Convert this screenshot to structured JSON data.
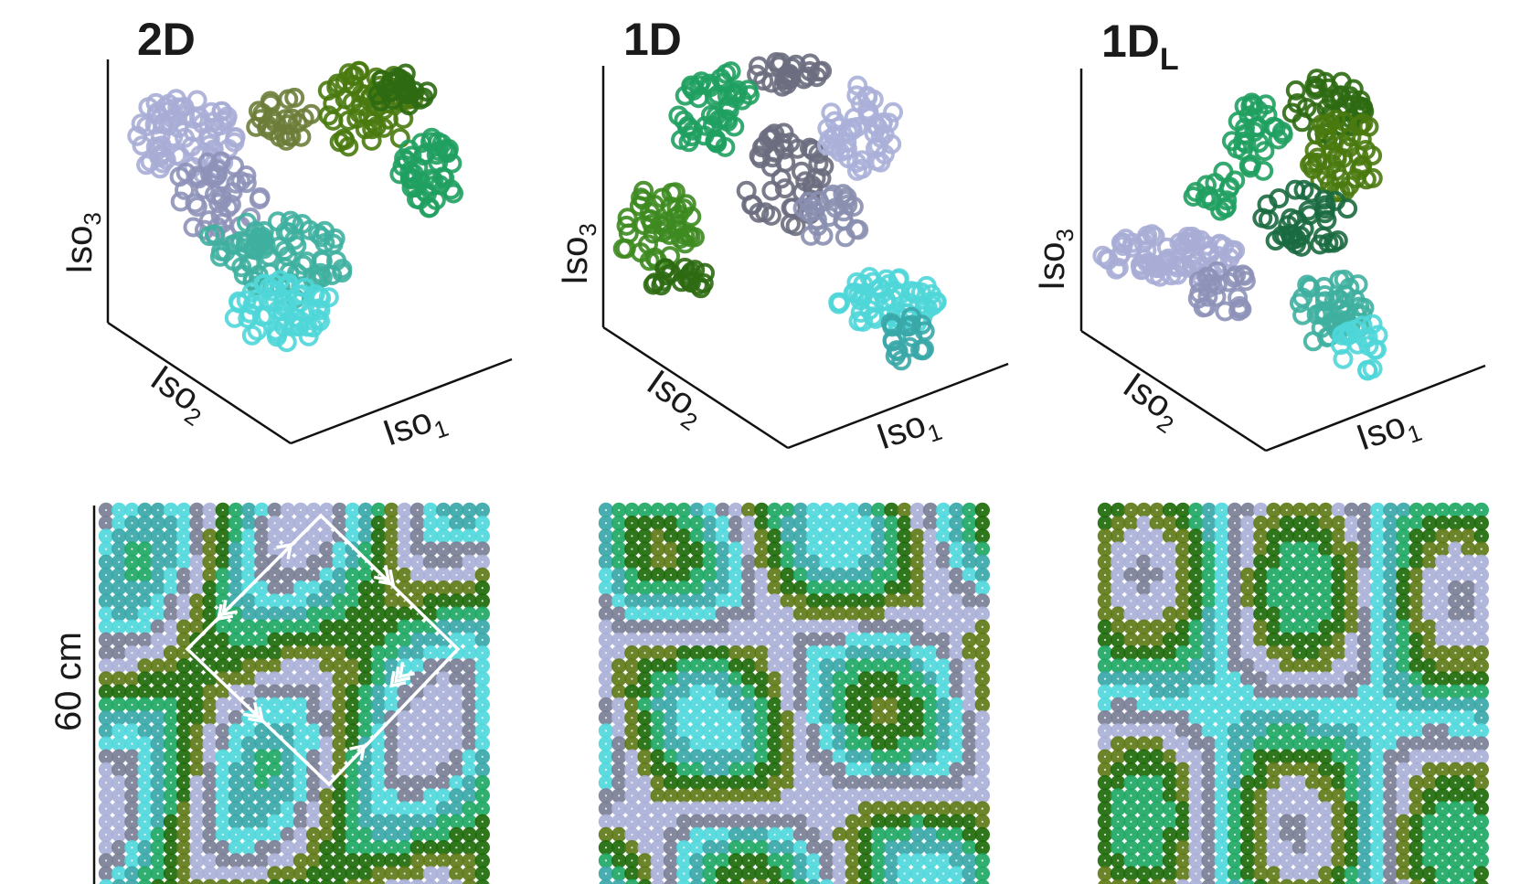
{
  "panels": [
    {
      "id": "2d",
      "title": "2D",
      "title_subscript": "",
      "axes": {
        "x": "Iso",
        "x_sub": "1",
        "y": "Iso",
        "y_sub": "2",
        "z": "Iso",
        "z_sub": "3"
      },
      "cloud_palette": [
        "#a9add6",
        "#8e92b8",
        "#6d7d3a",
        "#4a7a10",
        "#2e6a12",
        "#20a060",
        "#3fb0a0",
        "#4fd6d8"
      ]
    },
    {
      "id": "1d",
      "title": "1D",
      "title_subscript": "",
      "axes": {
        "x": "Iso",
        "x_sub": "1",
        "y": "Iso",
        "y_sub": "2",
        "z": "Iso",
        "z_sub": "3"
      },
      "cloud_palette": [
        "#1fa060",
        "#3d8a20",
        "#2e6a12",
        "#8a8fb0",
        "#6b6e80",
        "#aab0d8",
        "#4fd6d8",
        "#3aa7a8"
      ]
    },
    {
      "id": "1dl",
      "title": "1D",
      "title_subscript": "L",
      "axes": {
        "x": "Iso",
        "x_sub": "1",
        "y": "Iso",
        "y_sub": "2",
        "z": "Iso",
        "z_sub": "3"
      },
      "cloud_palette": [
        "#a9add6",
        "#8e92b8",
        "#2e6a12",
        "#4a7a10",
        "#1a6a40",
        "#20a060",
        "#3fb0a0",
        "#4fd6d8"
      ]
    }
  ],
  "scale_label": "60 cm",
  "colors": {
    "lavender": "#aab0d8",
    "cyan": "#50d8dc",
    "green": "#1ea864",
    "dark_green": "#1e6a0a",
    "olive": "#5f7a18",
    "slate": "#7a7f96",
    "teal": "#3aa7a8",
    "path_stroke": "#ffffff"
  }
}
